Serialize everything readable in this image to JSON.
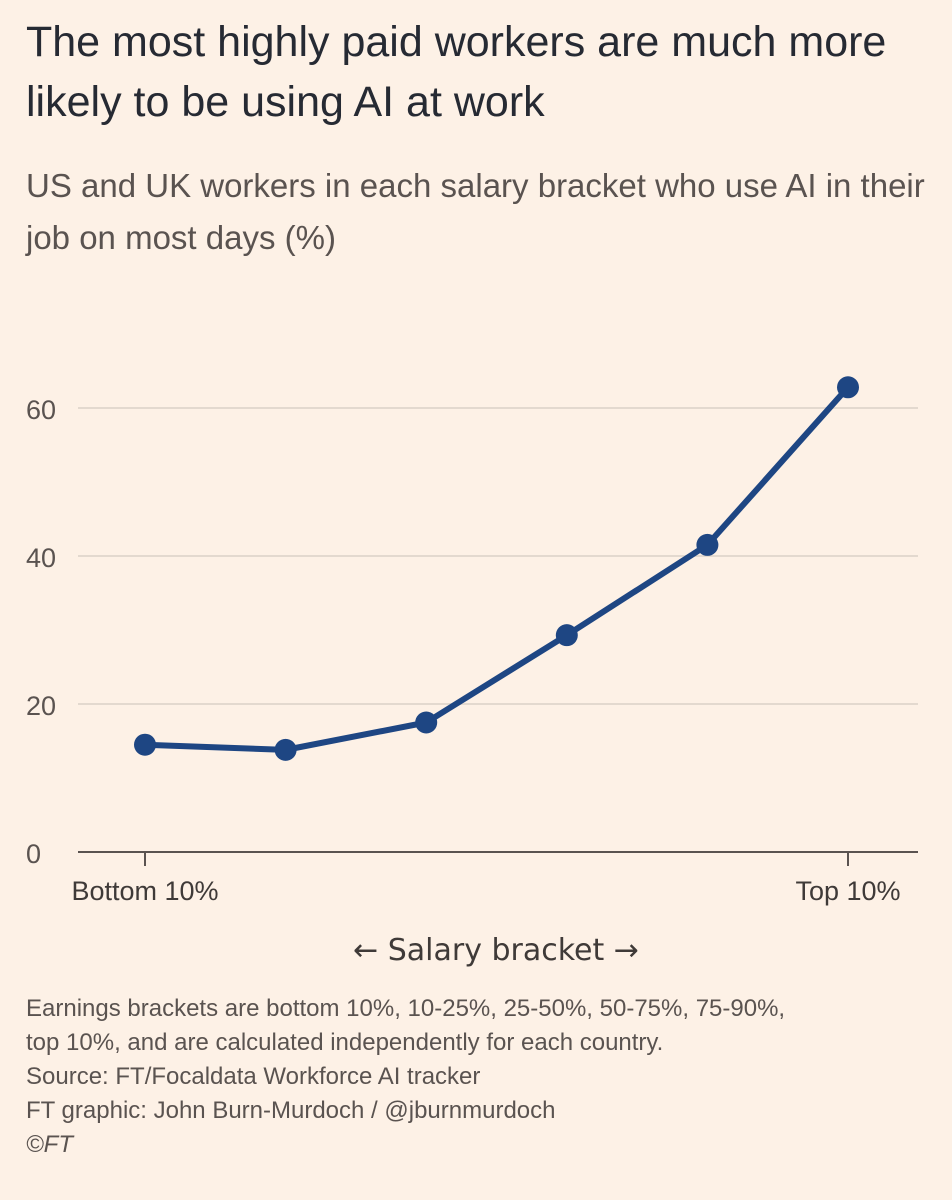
{
  "chart_data": {
    "type": "line",
    "title": "The most highly paid workers are much more likely to be using AI at work",
    "subtitle": "US and UK workers in each salary bracket who use AI in their job on most days (%)",
    "xlabel": "← Salary bracket →",
    "x_tick_labels": [
      "Bottom 10%",
      "Top 10%"
    ],
    "categories": [
      "Bottom 10%",
      "10-25%",
      "25-50%",
      "50-75%",
      "75-90%",
      "Top 10%"
    ],
    "values": [
      14.5,
      13.8,
      17.5,
      29.3,
      41.5,
      62.8
    ],
    "ylim": [
      0,
      68
    ],
    "yticks": [
      0,
      20,
      40,
      60
    ],
    "grid": true,
    "line_color": "#1e4683",
    "grid_color": "#e3d9cf"
  },
  "footer": {
    "note_line1": "Earnings brackets are bottom 10%, 10-25%, 25-50%, 50-75%, 75-90%,",
    "note_line2": "top 10%, and are calculated independently for each country.",
    "source": "Source: FT/Focaldata Workforce AI tracker",
    "credit": "FT graphic: John Burn-Murdoch / @jburnmurdoch",
    "copyright": "©FT"
  }
}
